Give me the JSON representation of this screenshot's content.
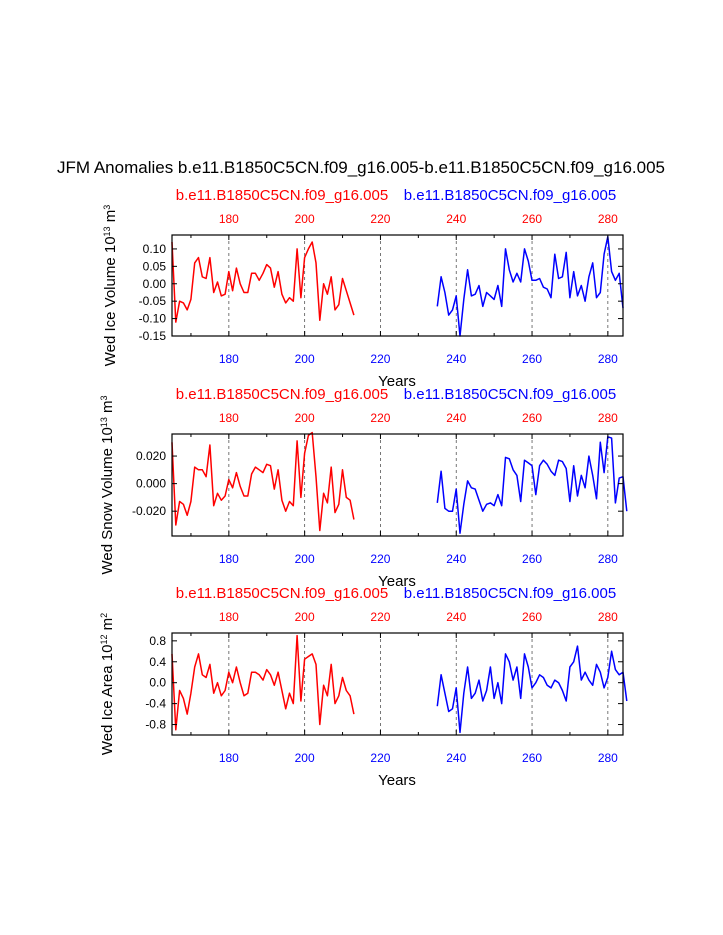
{
  "chart_data": {
    "type": "line",
    "title": "JFM Anomalies b.e11.B1850C5CN.f09_g16.005-b.e11.B1850C5CN.f09_g16.005",
    "colors": {
      "red": "#ff0000",
      "blue": "#0000ff",
      "axis": "#000000",
      "grid": "#555555"
    },
    "xlim": [
      165,
      284
    ],
    "xgrid": [
      180,
      200,
      220,
      240,
      260,
      280
    ],
    "xticks": [
      "180",
      "200",
      "220",
      "240",
      "260",
      "280"
    ],
    "panels": [
      {
        "title_red": "b.e11.B1850C5CN.f09_g16.005",
        "title_blue": "b.e11.B1850C5CN.f09_g16.005",
        "ylabel": "Wed Ice Volume",
        "ylabel_unit": "10",
        "ylabel_exp1": "13",
        "ylabel_unit2": "m",
        "ylabel_exp2": "3",
        "xlabel": "Years",
        "ylim": [
          -0.15,
          0.14
        ],
        "yticks": [
          "0.10",
          "0.05",
          "0.00",
          "-0.05",
          "-0.10",
          "-0.15"
        ],
        "ytick_values": [
          0.1,
          0.05,
          0.0,
          -0.05,
          -0.1,
          -0.15
        ],
        "series": [
          {
            "name": "b.e11.B1850C5CN.f09_g16.005",
            "color": "red",
            "x_start": 165,
            "values": [
              0.12,
              -0.11,
              -0.05,
              -0.055,
              -0.075,
              -0.045,
              0.06,
              0.075,
              0.02,
              0.015,
              0.075,
              -0.025,
              0.005,
              -0.035,
              -0.03,
              0.035,
              -0.02,
              0.045,
              0.0,
              -0.025,
              -0.025,
              0.03,
              0.03,
              0.01,
              0.03,
              0.055,
              0.045,
              -0.01,
              0.035,
              -0.03,
              -0.055,
              -0.04,
              -0.05,
              0.1,
              -0.04,
              0.075,
              0.1,
              0.12,
              0.06,
              -0.105,
              0.0,
              -0.03,
              0.02,
              -0.075,
              -0.06,
              0.015,
              -0.02,
              -0.055,
              -0.09
            ]
          },
          {
            "name": "b.e11.B1850C5CN.f09_g16.005",
            "color": "blue",
            "x_start": 235,
            "values": [
              -0.065,
              0.02,
              -0.025,
              -0.09,
              -0.075,
              -0.035,
              -0.15,
              -0.045,
              0.04,
              -0.035,
              -0.03,
              -0.005,
              -0.065,
              -0.025,
              -0.035,
              -0.045,
              -0.005,
              -0.065,
              0.1,
              0.04,
              0.005,
              0.03,
              0.005,
              0.1,
              0.065,
              0.01,
              0.01,
              0.015,
              -0.01,
              -0.015,
              -0.04,
              0.085,
              0.015,
              0.02,
              0.09,
              -0.04,
              0.035,
              -0.035,
              -0.005,
              -0.05,
              0.02,
              0.06,
              -0.04,
              -0.025,
              0.085,
              0.135,
              0.035,
              0.01,
              0.03,
              -0.07
            ]
          }
        ]
      },
      {
        "title_red": "b.e11.B1850C5CN.f09_g16.005",
        "title_blue": "b.e11.B1850C5CN.f09_g16.005",
        "ylabel": "Wed Snow Volume",
        "ylabel_unit": "10",
        "ylabel_exp1": "13",
        "ylabel_unit2": "m",
        "ylabel_exp2": "3",
        "xlabel": "Years",
        "ylim": [
          -0.038,
          0.036
        ],
        "yticks": [
          "0.020",
          "0.000",
          "-0.020"
        ],
        "ytick_values": [
          0.02,
          0.0,
          -0.02
        ],
        "series": [
          {
            "name": "b.e11.B1850C5CN.f09_g16.005",
            "color": "red",
            "x_start": 165,
            "values": [
              0.03,
              -0.03,
              -0.013,
              -0.015,
              -0.023,
              -0.013,
              0.012,
              0.01,
              0.01,
              0.005,
              0.028,
              -0.016,
              -0.007,
              -0.012,
              -0.009,
              0.003,
              -0.003,
              0.008,
              -0.002,
              -0.009,
              -0.009,
              0.007,
              0.012,
              0.01,
              0.008,
              0.014,
              0.013,
              -0.004,
              0.01,
              -0.012,
              -0.02,
              -0.013,
              -0.016,
              0.031,
              -0.01,
              0.022,
              0.035,
              0.037,
              0.005,
              -0.034,
              -0.007,
              -0.014,
              0.012,
              -0.021,
              -0.015,
              0.01,
              -0.01,
              -0.012,
              -0.026
            ]
          },
          {
            "name": "b.e11.B1850C5CN.f09_g16.005",
            "color": "blue",
            "x_start": 235,
            "values": [
              -0.014,
              0.009,
              -0.018,
              -0.02,
              -0.02,
              -0.004,
              -0.036,
              -0.015,
              0.002,
              -0.003,
              -0.004,
              -0.012,
              -0.02,
              -0.015,
              -0.014,
              -0.016,
              -0.008,
              -0.016,
              0.019,
              0.018,
              0.01,
              0.006,
              -0.013,
              0.017,
              0.015,
              0.013,
              -0.008,
              0.013,
              0.017,
              0.014,
              0.009,
              0.006,
              0.017,
              0.016,
              0.011,
              -0.013,
              0.013,
              -0.009,
              0.006,
              -0.003,
              0.02,
              0.006,
              -0.011,
              0.03,
              0.008,
              0.034,
              0.033,
              -0.014,
              0.004,
              0.005,
              -0.02
            ]
          }
        ]
      },
      {
        "title_red": "b.e11.B1850C5CN.f09_g16.005",
        "title_blue": "b.e11.B1850C5CN.f09_g16.005",
        "ylabel": "Wed Ice Area",
        "ylabel_unit": "10",
        "ylabel_exp1": "12",
        "ylabel_unit2": "m",
        "ylabel_exp2": "2",
        "xlabel": "Years",
        "ylim": [
          -1.0,
          0.95
        ],
        "yticks": [
          "0.8",
          "0.4",
          "0.0",
          "-0.4",
          "-0.8"
        ],
        "ytick_values": [
          0.8,
          0.4,
          0.0,
          -0.4,
          -0.8
        ],
        "series": [
          {
            "name": "b.e11.B1850C5CN.f09_g16.005",
            "color": "red",
            "x_start": 165,
            "values": [
              0.55,
              -0.9,
              -0.15,
              -0.3,
              -0.6,
              -0.2,
              0.3,
              0.55,
              0.15,
              0.1,
              0.35,
              -0.2,
              0.0,
              -0.25,
              -0.15,
              0.2,
              0.0,
              0.3,
              0.0,
              -0.25,
              -0.2,
              0.2,
              0.2,
              0.15,
              0.05,
              0.25,
              0.15,
              -0.05,
              0.2,
              -0.15,
              -0.5,
              -0.2,
              -0.4,
              0.9,
              -0.35,
              0.45,
              0.5,
              0.55,
              0.35,
              -0.8,
              -0.05,
              -0.25,
              0.35,
              -0.4,
              -0.25,
              0.1,
              -0.15,
              -0.25,
              -0.6
            ]
          },
          {
            "name": "b.e11.B1850C5CN.f09_g16.005",
            "color": "blue",
            "x_start": 235,
            "values": [
              -0.45,
              0.15,
              -0.2,
              -0.55,
              -0.5,
              -0.1,
              -0.95,
              -0.2,
              0.3,
              -0.3,
              -0.2,
              0.05,
              -0.35,
              -0.15,
              0.3,
              -0.3,
              0.0,
              -0.4,
              0.55,
              0.4,
              0.05,
              0.3,
              -0.3,
              0.55,
              0.3,
              -0.1,
              0.0,
              0.15,
              0.1,
              -0.05,
              -0.1,
              0.05,
              0.0,
              -0.15,
              -0.35,
              0.3,
              0.4,
              0.7,
              0.05,
              0.2,
              0.05,
              -0.05,
              0.35,
              0.2,
              -0.1,
              0.1,
              0.6,
              0.25,
              0.15,
              0.2,
              -0.35
            ]
          }
        ]
      }
    ]
  }
}
